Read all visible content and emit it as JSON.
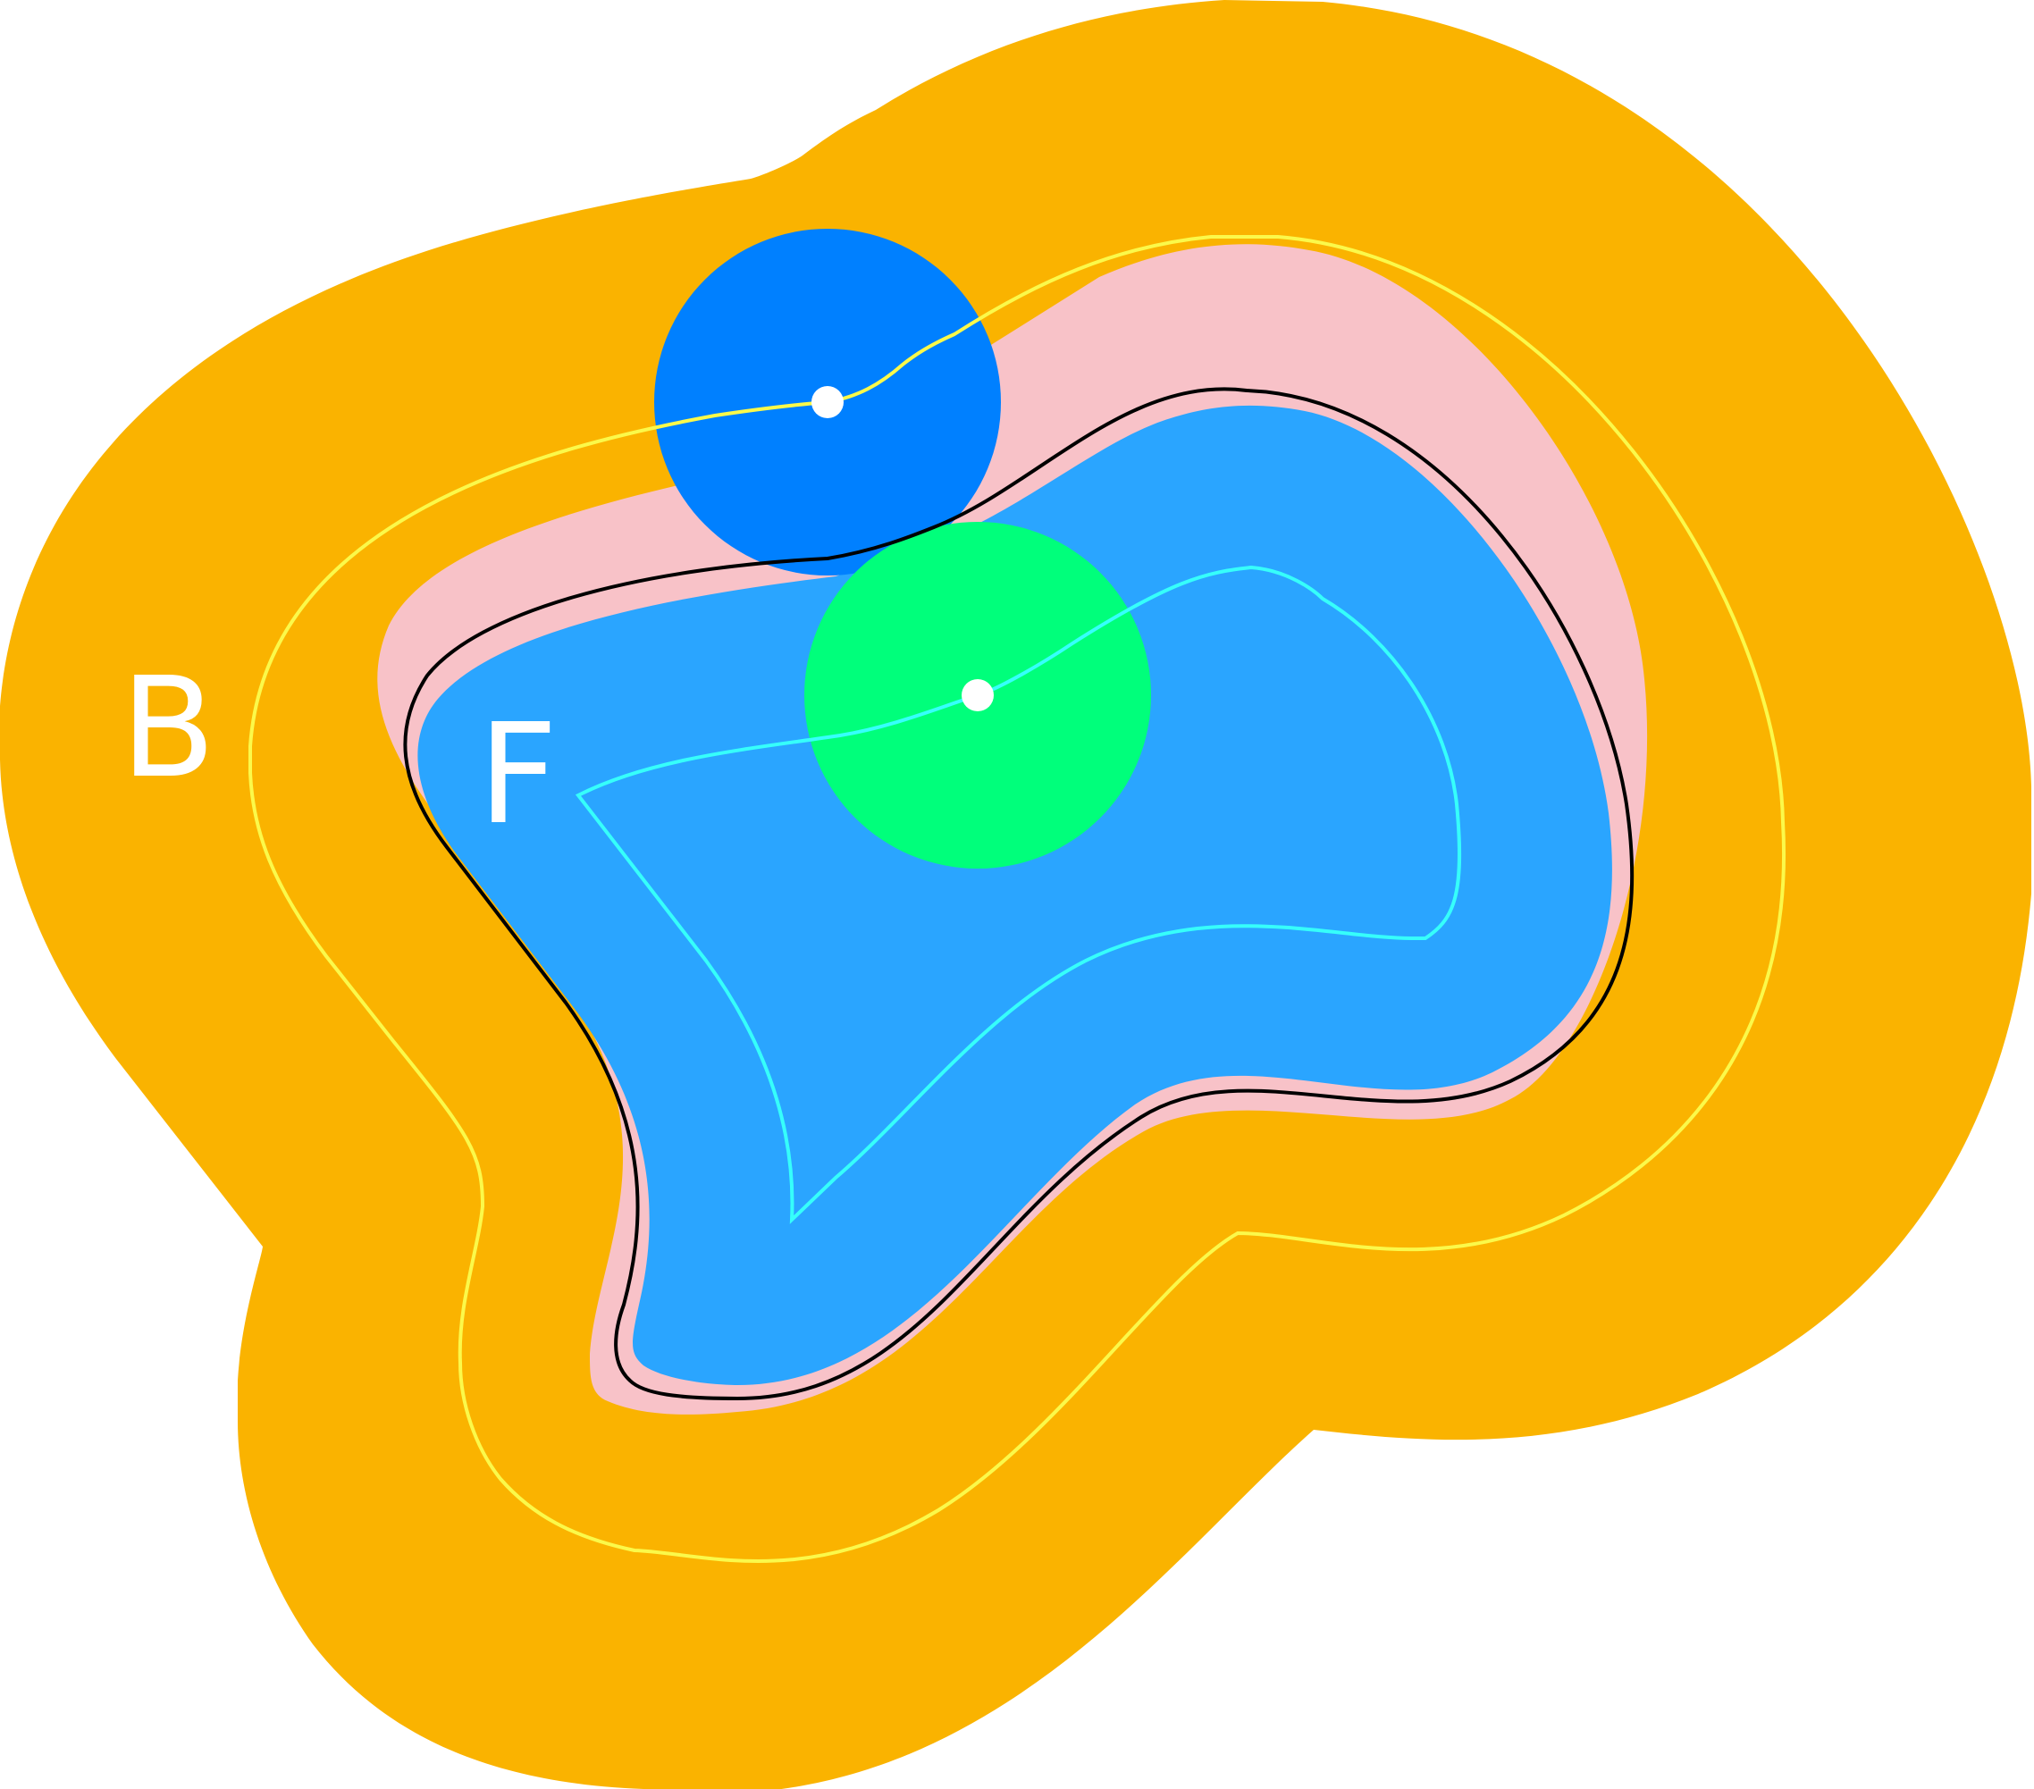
{
  "labels": {
    "outer_region": "B",
    "inner_region": "F"
  },
  "colors": {
    "background": "#ffffff",
    "outer_region": "#fab300",
    "inner_band": "#f8c2c8",
    "inner_region": "#2aa5ff",
    "yellow_curve": "#fbf94a",
    "boundary_curve": "#000000",
    "cyan_curve": "#36fffb",
    "blue_disk": "#0080ff",
    "green_disk": "#00ff7b",
    "disk_center": "#ffffff",
    "label_text": "#ffffff"
  },
  "icons": {
    "blue_disk_center": "dot-icon",
    "green_disk_center": "dot-icon"
  }
}
